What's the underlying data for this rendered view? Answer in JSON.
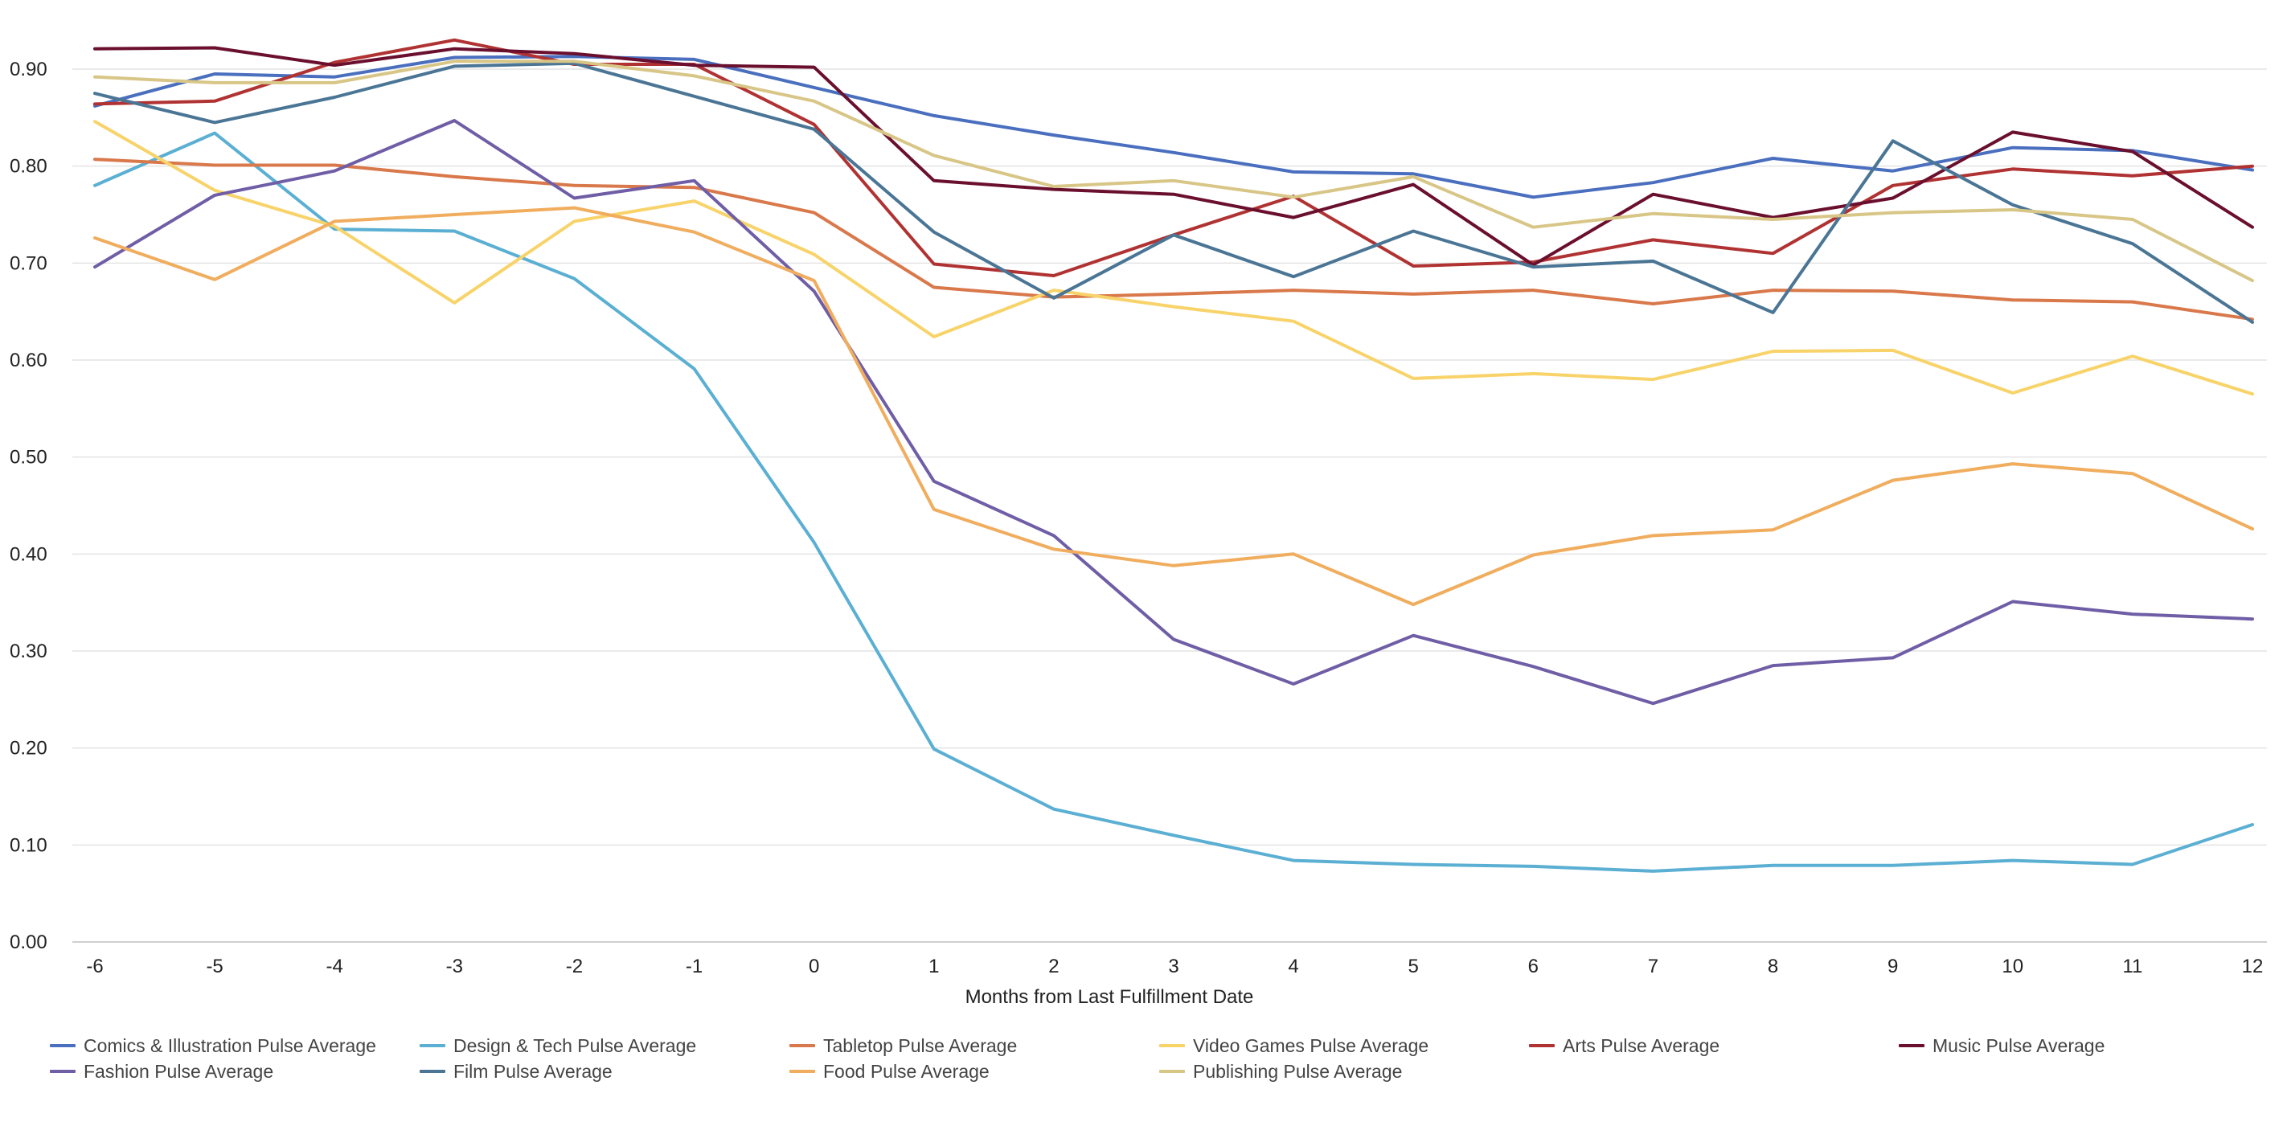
{
  "chart_data": {
    "type": "line",
    "title": "",
    "xlabel": "Months from Last Fulfillment Date",
    "ylabel": "",
    "x": [
      -6,
      -5,
      -4,
      -3,
      -2,
      -1,
      0,
      1,
      2,
      3,
      4,
      5,
      6,
      7,
      8,
      9,
      10,
      11,
      12
    ],
    "ylim": [
      0,
      0.9
    ],
    "yticks": [
      "0.00",
      "0.10",
      "0.20",
      "0.30",
      "0.40",
      "0.50",
      "0.60",
      "0.70",
      "0.80",
      "0.90"
    ],
    "grid": true,
    "legend_position": "bottom",
    "series": [
      {
        "name": "Comics & Illustration Pulse Average",
        "color": "#4a6fbf",
        "values": [
          0.862,
          0.895,
          0.892,
          0.912,
          0.913,
          0.91,
          0.881,
          0.852,
          0.832,
          0.814,
          0.794,
          0.792,
          0.768,
          0.783,
          0.808,
          0.795,
          0.819,
          0.816,
          0.796
        ]
      },
      {
        "name": "Design & Tech Pulse Average",
        "color": "#5aafd3",
        "values": [
          0.78,
          0.834,
          0.735,
          0.733,
          0.684,
          0.591,
          0.412,
          0.199,
          0.137,
          0.11,
          0.084,
          0.08,
          0.078,
          0.073,
          0.079,
          0.079,
          0.084,
          0.08,
          0.121
        ]
      },
      {
        "name": "Tabletop Pulse Average",
        "color": "#d9784a",
        "values": [
          0.807,
          0.801,
          0.801,
          0.789,
          0.78,
          0.778,
          0.752,
          0.675,
          0.665,
          0.668,
          0.672,
          0.668,
          0.672,
          0.658,
          0.672,
          0.671,
          0.662,
          0.66,
          0.642
        ]
      },
      {
        "name": "Video Games Pulse Average",
        "color": "#f8d36a",
        "values": [
          0.846,
          0.775,
          0.738,
          0.659,
          0.743,
          0.764,
          0.709,
          0.624,
          0.672,
          0.655,
          0.64,
          0.581,
          0.586,
          0.58,
          0.609,
          0.61,
          0.566,
          0.604,
          0.565
        ]
      },
      {
        "name": "Arts Pulse Average",
        "color": "#b03232",
        "values": [
          0.864,
          0.867,
          0.907,
          0.93,
          0.905,
          0.905,
          0.843,
          0.699,
          0.687,
          0.729,
          0.769,
          0.697,
          0.701,
          0.724,
          0.71,
          0.78,
          0.797,
          0.79,
          0.8
        ]
      },
      {
        "name": "Music Pulse Average",
        "color": "#6a0f2e",
        "values": [
          0.921,
          0.922,
          0.904,
          0.921,
          0.916,
          0.904,
          0.902,
          0.785,
          0.776,
          0.771,
          0.747,
          0.781,
          0.698,
          0.771,
          0.747,
          0.767,
          0.835,
          0.815,
          0.737
        ]
      },
      {
        "name": "Fashion Pulse Average",
        "color": "#6f5ea6",
        "values": [
          0.696,
          0.77,
          0.795,
          0.847,
          0.767,
          0.785,
          0.671,
          0.475,
          0.419,
          0.312,
          0.266,
          0.316,
          0.284,
          0.246,
          0.285,
          0.293,
          0.351,
          0.338,
          0.333
        ]
      },
      {
        "name": "Film Pulse Average",
        "color": "#4a7595",
        "values": [
          0.875,
          0.845,
          0.871,
          0.903,
          0.906,
          0.872,
          0.838,
          0.732,
          0.664,
          0.729,
          0.686,
          0.733,
          0.696,
          0.702,
          0.649,
          0.826,
          0.76,
          0.72,
          0.639
        ]
      },
      {
        "name": "Food Pulse Average",
        "color": "#f0ad5e",
        "values": [
          0.726,
          0.683,
          0.743,
          0.75,
          0.757,
          0.732,
          0.682,
          0.446,
          0.405,
          0.388,
          0.4,
          0.348,
          0.399,
          0.419,
          0.425,
          0.476,
          0.493,
          0.483,
          0.426
        ]
      },
      {
        "name": "Publishing Pulse Average",
        "color": "#d8c687",
        "values": [
          0.892,
          0.886,
          0.886,
          0.908,
          0.908,
          0.893,
          0.867,
          0.811,
          0.779,
          0.785,
          0.768,
          0.789,
          0.737,
          0.751,
          0.745,
          0.752,
          0.755,
          0.745,
          0.682
        ]
      }
    ]
  }
}
